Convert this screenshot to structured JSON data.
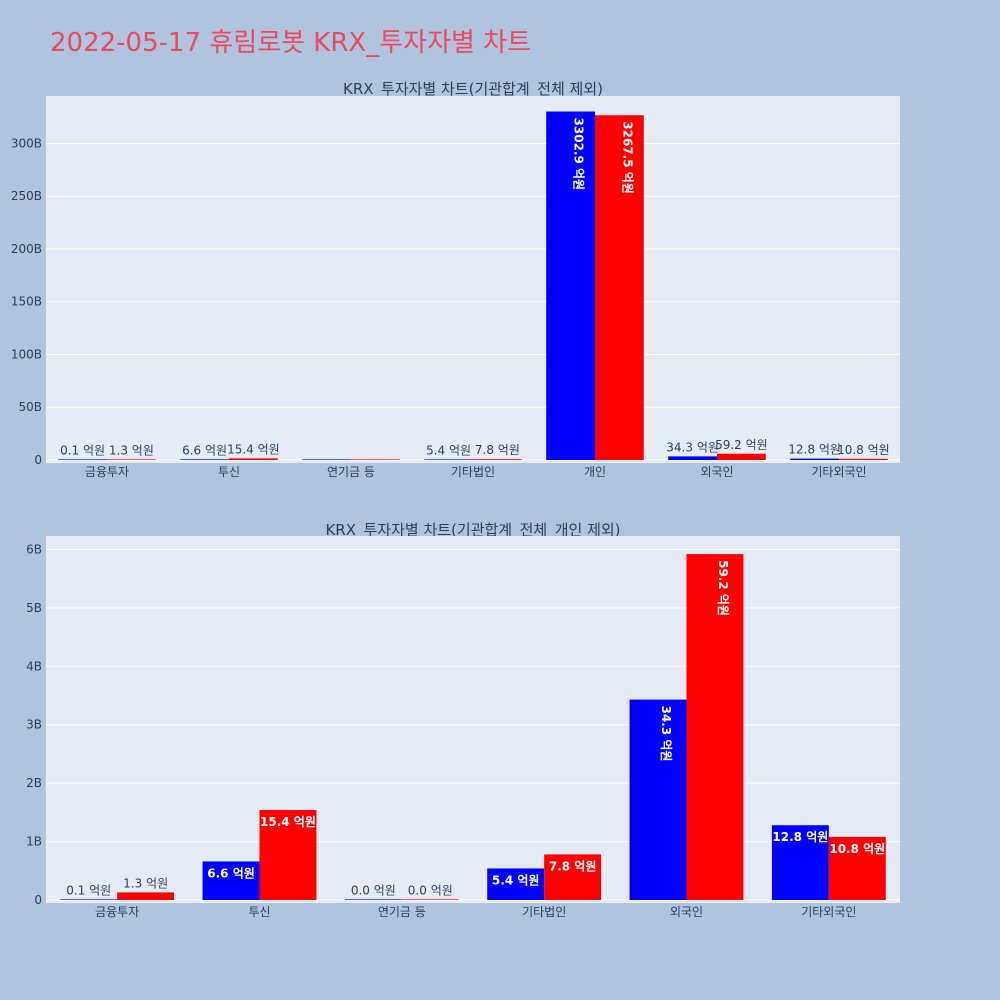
{
  "page": {
    "title": "2022-05-17 휴림로봇 KRX_투자자별 차트"
  },
  "chart_data": [
    {
      "type": "bar",
      "title": "KRX_투자자별 차트(기관합계_전체 제외)",
      "categories": [
        "금융투자",
        "투신",
        "연기금 등",
        "기타법인",
        "개인",
        "외국인",
        "기타외국인"
      ],
      "series": [
        {
          "color": "#0000ff",
          "values": [
            0.01,
            0.66,
            0,
            0.54,
            330.29,
            3.43,
            1.28
          ],
          "labels": [
            "0.1 억원",
            "6.6 억원",
            "",
            "5.4 억원",
            "3302.9 억원",
            "34.3 억원",
            "12.8 억원"
          ]
        },
        {
          "color": "#ff0000",
          "values": [
            0.13,
            1.54,
            0,
            0.78,
            326.75,
            5.92,
            1.08
          ],
          "labels": [
            "1.3 억원",
            "15.4 억원",
            "",
            "7.8 억원",
            "3267.5 억원",
            "59.2 억원",
            "10.8 억원"
          ]
        }
      ],
      "yticks": [
        "0",
        "50B",
        "100B",
        "150B",
        "200B",
        "250B",
        "300B"
      ],
      "ylim": [
        0,
        345
      ],
      "grid": true,
      "unit": "B"
    },
    {
      "type": "bar",
      "title": "KRX_투자자별 차트(기관합계_전체_개인 제외)",
      "categories": [
        "금융투자",
        "투신",
        "연기금 등",
        "기타법인",
        "외국인",
        "기타외국인"
      ],
      "series": [
        {
          "color": "#0000ff",
          "values": [
            0.01,
            0.66,
            0,
            0.54,
            3.43,
            1.28
          ],
          "labels": [
            "0.1 억원",
            "6.6 억원",
            "0.0 억원",
            "5.4 억원",
            "34.3 억원",
            "12.8 억원"
          ]
        },
        {
          "color": "#ff0000",
          "values": [
            0.13,
            1.54,
            0,
            0.78,
            5.92,
            1.08
          ],
          "labels": [
            "1.3 억원",
            "15.4 억원",
            "0.0 억원",
            "7.8 억원",
            "59.2 억원",
            "10.8 억원"
          ]
        }
      ],
      "yticks": [
        "0",
        "1B",
        "2B",
        "3B",
        "4B",
        "5B",
        "6B"
      ],
      "ylim": [
        0,
        6.23
      ],
      "grid": true,
      "unit": "B"
    }
  ]
}
